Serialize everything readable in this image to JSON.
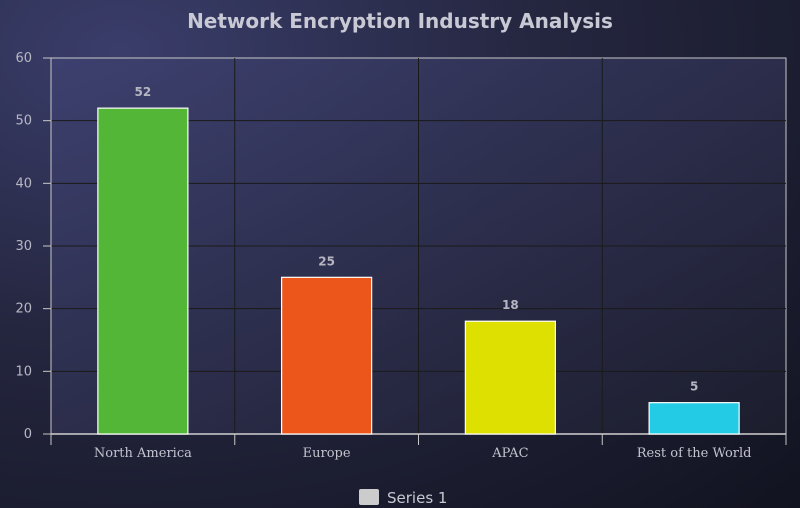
{
  "chart_data": {
    "type": "bar",
    "title": "Network Encryption Industry Analysis",
    "categories": [
      "North America",
      "Europe",
      "APAC",
      "Rest of the World"
    ],
    "series": [
      {
        "name": "Series 1",
        "values": [
          52,
          25,
          18,
          5
        ],
        "colors": [
          "#54b637",
          "#ec561b",
          "#dde000",
          "#24cbe5"
        ]
      }
    ],
    "ylim": [
      0,
      60
    ],
    "yticks": [
      0,
      10,
      20,
      30,
      40,
      50,
      60
    ],
    "grid": true,
    "data_labels": true,
    "legend_position": "bottom-center",
    "legend_color": "#cccccc"
  }
}
